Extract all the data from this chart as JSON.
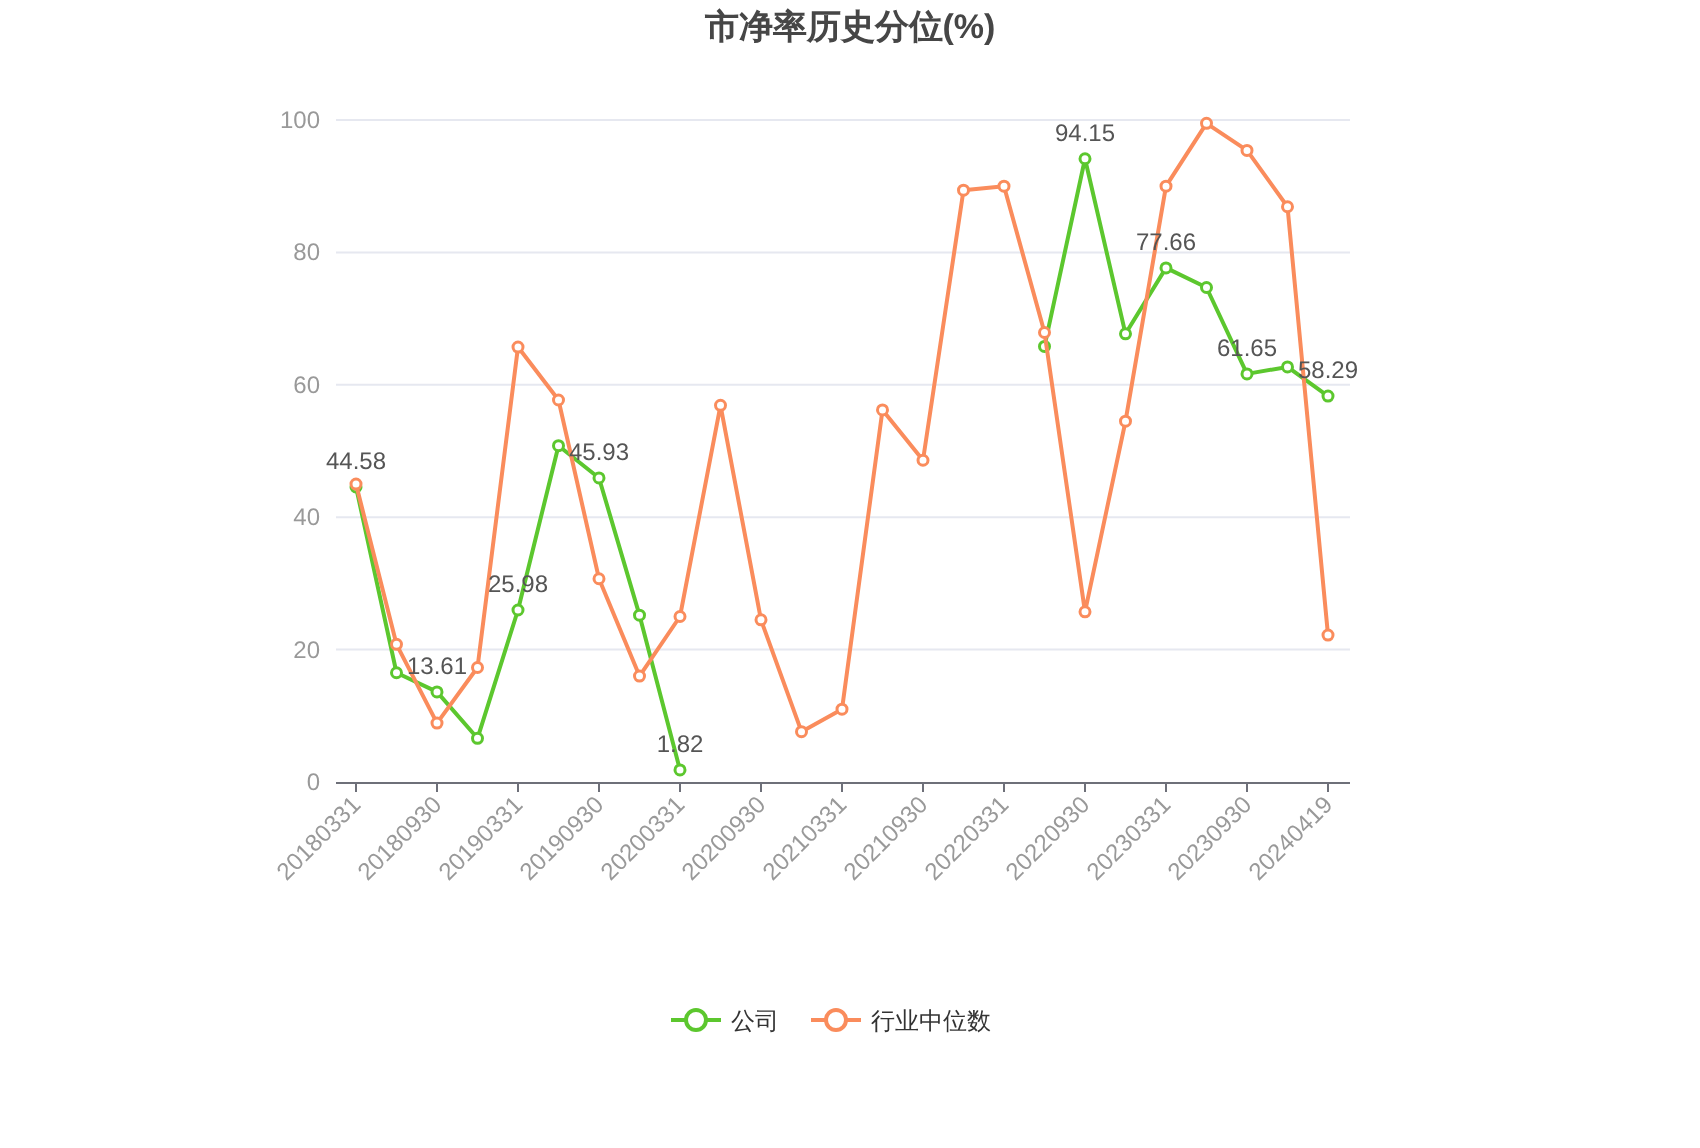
{
  "chart_data": {
    "type": "line",
    "title": "市净率历史分位(%)",
    "categories": [
      "20180331",
      null,
      "20180930",
      null,
      "20190331",
      null,
      "20190930",
      null,
      "20200331",
      null,
      "20200930",
      null,
      "20210331",
      null,
      "20210930",
      null,
      "20220331",
      null,
      "20220930",
      null,
      "20230331",
      null,
      "20230930",
      null,
      "20240419"
    ],
    "series": [
      {
        "name": "公司",
        "color": "#5cc72e",
        "values": [
          44.58,
          16.5,
          13.61,
          6.6,
          25.98,
          50.8,
          45.93,
          25.2,
          1.82,
          null,
          null,
          null,
          null,
          null,
          null,
          null,
          null,
          65.8,
          94.15,
          67.7,
          77.66,
          74.7,
          61.65,
          62.7,
          58.29
        ],
        "value_labels": [
          "44.58",
          null,
          "13.61",
          null,
          "25.98",
          null,
          "45.93",
          null,
          "1.82",
          null,
          null,
          null,
          null,
          null,
          null,
          null,
          null,
          null,
          "94.15",
          null,
          "77.66",
          null,
          "61.65",
          null,
          "58.29"
        ]
      },
      {
        "name": "行业中位数",
        "color": "#fa8c5c",
        "values": [
          45.0,
          20.8,
          8.9,
          17.3,
          65.7,
          57.7,
          30.7,
          16.0,
          25.0,
          56.9,
          24.5,
          7.6,
          11.0,
          56.2,
          48.6,
          89.4,
          90.0,
          67.9,
          25.7,
          54.5,
          90.0,
          99.5,
          95.4,
          86.9,
          22.2
        ]
      }
    ],
    "ylim": [
      0,
      100
    ],
    "yticks": [
      0,
      20,
      40,
      60,
      80,
      100
    ],
    "grid": "y",
    "legend": "bottom",
    "marker": "circle",
    "line_style": "solid"
  }
}
